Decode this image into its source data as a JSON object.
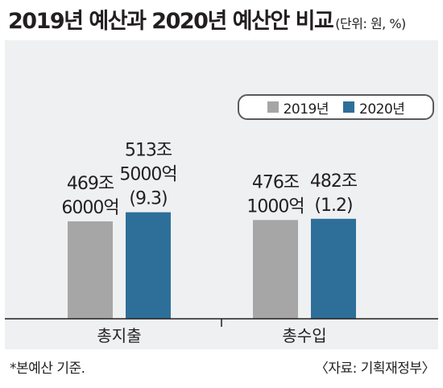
{
  "header": {
    "title": "2019년 예산과 2020년 예산안 비교",
    "unit": "(단위: 원, %)"
  },
  "colors": {
    "series_2019": "#a6a6a6",
    "series_2020": "#2e6f99"
  },
  "chart_data": {
    "type": "bar",
    "categories": [
      "총지출",
      "총수입"
    ],
    "series": [
      {
        "name": "2019년",
        "values": [
          469.6,
          476.1
        ],
        "labels": [
          [
            "469조",
            "6000억"
          ],
          [
            "476조",
            "1000억"
          ]
        ]
      },
      {
        "name": "2020년",
        "values": [
          513.5,
          482.0
        ],
        "labels": [
          [
            "513조",
            "5000억",
            "(9.3)"
          ],
          [
            "482조",
            "(1.2)"
          ]
        ]
      }
    ],
    "change_percent": [
      9.3,
      1.2
    ],
    "units": "조 원",
    "title": "2019년 예산과 2020년 예산안 비교",
    "legend_position": "top-right",
    "grid": false
  },
  "footer": {
    "note": "*본예산 기준.",
    "source": "〈자료: 기획재정부〉"
  }
}
